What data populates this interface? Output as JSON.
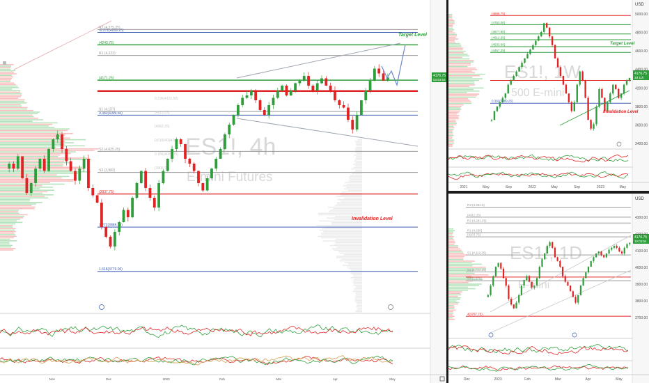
{
  "main": {
    "watermark_symbol": "ES1!, 4h",
    "watermark_name": "E-mini Futures",
    "target_label": "Target Level",
    "invalidation_label": "Invalidation Level",
    "price_badge": "4176.75",
    "price_badge_time": "03:53:53",
    "ghost_labels": [
      "0.236(4131.50)",
      "(4121.25)",
      "(4062.25)",
      "0.618(4034.50)",
      "0.786(4007.75)",
      "(3908.75)"
    ],
    "top_axis_labels": [
      "Nov",
      "Dec",
      "2023",
      "Feb",
      "Mar",
      "Apr",
      "May"
    ],
    "levels": [
      {
        "label": "-0.272(4269.25)",
        "price": 4269.25,
        "color": "#3b5bb5",
        "width": 1
      },
      {
        "label": "R2 (4,275.25)",
        "price": 4275.25,
        "color": "#9a9a9a",
        "width": 1
      },
      {
        "label": "(4243.75)",
        "price": 4243.75,
        "color": "#2e9e3a",
        "width": 1.4
      },
      {
        "label": "R1 (4,222)",
        "price": 4222,
        "color": "#9a9a9a",
        "width": 1
      },
      {
        "label": "(4171.25)",
        "price": 4171.25,
        "color": "#2e9e3a",
        "width": 1.4
      },
      {
        "label": "",
        "price": 4149,
        "color": "#e02424",
        "width": 2.5
      },
      {
        "label": "0.382(4099.50)",
        "price": 4099.5,
        "color": "#3b5bb5",
        "width": 1
      },
      {
        "label": "S1 (4,107)",
        "price": 4107,
        "color": "#9a9a9a",
        "width": 1
      },
      {
        "label": "S2 (4,025.25)",
        "price": 4025.25,
        "color": "#9a9a9a",
        "width": 1
      },
      {
        "label": "S3 (3,982)",
        "price": 3982,
        "color": "#9a9a9a",
        "width": 1
      },
      {
        "label": "(3937.75)",
        "price": 3937.75,
        "color": "#e02424",
        "width": 1.4
      },
      {
        "label": "1.272(3869.75)",
        "price": 3869.75,
        "color": "#3b5bb5",
        "width": 1
      },
      {
        "label": "1.618(3779.00)",
        "price": 3779,
        "color": "#3b5bb5",
        "width": 1
      }
    ]
  },
  "weekly": {
    "watermark_symbol": "ES1!, 1W",
    "watermark_name": "500 E-mini",
    "currency": "USD",
    "target_label": "Target Level",
    "invalidation_label": "Invalidation Level",
    "price_badge": "4176.75",
    "price_badge_time": "3d 11h",
    "levels": [
      {
        "label": "(4886.75)",
        "price": 4886.75,
        "color": "#e02424"
      },
      {
        "label": "(4783.00)",
        "price": 4783,
        "color": "#2e9e3a"
      },
      {
        "label": "(4677.50)",
        "price": 4677.5,
        "color": "#2e9e3a"
      },
      {
        "label": "(4612.25)",
        "price": 4612.25,
        "color": "#2e9e3a"
      },
      {
        "label": "(4533.00)",
        "price": 4533,
        "color": "#2e9e3a"
      },
      {
        "label": "(4467.25)",
        "price": 4467.25,
        "color": "#2e9e3a"
      },
      {
        "label": "0.382(3889.25)",
        "price": 3889.25,
        "color": "#3b5bb5"
      },
      {
        "label": "",
        "price": 4149,
        "color": "#e02424"
      }
    ],
    "y_ticks": [
      "5000.00",
      "4800.00",
      "4600.00",
      "4400.00",
      "4200.00",
      "3800.00",
      "3600.00",
      "3400.00"
    ],
    "x_ticks": [
      "2021",
      "May",
      "Sep",
      "2022",
      "May",
      "Sep",
      "2023",
      "May"
    ],
    "osc_ticks": [
      "0.00"
    ]
  },
  "daily": {
    "watermark_symbol": "ES1!, 1D",
    "watermark_name": "E-mini",
    "currency": "USD",
    "price_badge": "4176.75",
    "price_badge_time": "10:03:54",
    "levels": [
      {
        "label": "R3 (4,364.5)",
        "price": 4364.5,
        "color": "#9a9a9a"
      },
      {
        "label": "(4312.25)",
        "price": 4312.25,
        "color": "#9a9a9a"
      },
      {
        "label": "R2 (4,281.25)",
        "price": 4281.25,
        "color": "#9a9a9a"
      },
      {
        "label": "R1 (4,230)",
        "price": 4230,
        "color": "#9a9a9a"
      },
      {
        "label": "(4207.75)",
        "price": 4207.75,
        "color": "#9a9a9a"
      },
      {
        "label": "S1 (4,112.25)",
        "price": 4112.25,
        "color": "#9a9a9a"
      },
      {
        "label": "S2 (4,022.25)",
        "price": 4022.25,
        "color": "#9a9a9a"
      },
      {
        "label": "S3 (3,976)",
        "price": 3976,
        "color": "#9a9a9a"
      },
      {
        "label": "4(3787.75)",
        "price": 3787.75,
        "color": "#e02424"
      },
      {
        "label": "",
        "price": 3995,
        "color": "#e02424"
      }
    ],
    "y_ticks": [
      "4300.00",
      "4200.00",
      "4100.00",
      "4000.00",
      "3900.00",
      "3800.00",
      "3700.00"
    ],
    "x_ticks": [
      "Dec",
      "2023",
      "Feb",
      "Mar",
      "Apr",
      "May"
    ],
    "osc_ticks": [
      "0.00"
    ]
  },
  "chart_data": [
    {
      "type": "candlestick",
      "title": "ES1!, 4h",
      "subtitle": "E-mini Futures",
      "ylim": [
        3700,
        4300
      ],
      "series": [
        {
          "name": "ES1!",
          "values": [
            4000,
            3990,
            4015,
            3970,
            3940,
            3960,
            3990,
            4010,
            3985,
            4030,
            4050,
            4060,
            4030,
            4005,
            3985,
            3965,
            3990,
            4010,
            3950,
            3935,
            3920,
            3870,
            3850,
            3830,
            3860,
            3880,
            3905,
            3890,
            3930,
            3960,
            3985,
            3950,
            3930,
            3910,
            3960,
            3985,
            4010,
            4030,
            4050,
            4040,
            4010,
            4000,
            3985,
            3960,
            3945,
            3970,
            3990,
            4010,
            4030,
            4060,
            4080,
            4100,
            4120,
            4135,
            4140,
            4150,
            4130,
            4110,
            4100,
            4120,
            4135,
            4150,
            4160,
            4140,
            4150,
            4165,
            4170,
            4180,
            4160,
            4150,
            4165,
            4175,
            4160,
            4150,
            4130,
            4120,
            4115,
            4090,
            4070,
            4100,
            4130,
            4150,
            4170,
            4195,
            4185,
            4170,
            4176.75
          ]
        }
      ]
    },
    {
      "type": "candlestick",
      "title": "ES1!, 1W",
      "ylim": [
        3400,
        5000
      ],
      "series": [
        {
          "name": "ES1!",
          "values": [
            3700,
            3800,
            3850,
            3900,
            3950,
            4000,
            4100,
            4150,
            4200,
            4250,
            4300,
            4350,
            4400,
            4450,
            4500,
            4550,
            4600,
            4650,
            4700,
            4800,
            4750,
            4650,
            4550,
            4400,
            4300,
            4200,
            4100,
            4000,
            3900,
            3800,
            3900,
            4100,
            4250,
            4150,
            3950,
            3700,
            3600,
            3650,
            3850,
            4050,
            3950,
            3800,
            3900,
            4000,
            4100,
            4050,
            3950,
            4000,
            4100,
            4150,
            4176.75
          ]
        }
      ]
    },
    {
      "type": "candlestick",
      "title": "ES1!, 1D",
      "ylim": [
        3700,
        4400
      ],
      "series": [
        {
          "name": "ES1!",
          "values": [
            3900,
            3950,
            4000,
            4050,
            4070,
            4040,
            3990,
            3950,
            3880,
            3850,
            3830,
            3860,
            3900,
            3950,
            3980,
            4000,
            3970,
            3940,
            3950,
            3990,
            4050,
            4090,
            4120,
            4160,
            4180,
            4150,
            4100,
            4080,
            4050,
            4000,
            3970,
            3950,
            3920,
            3890,
            3860,
            3900,
            3950,
            3990,
            4020,
            4050,
            4080,
            4100,
            4120,
            4130,
            4110,
            4100,
            4120,
            4140,
            4150,
            4160,
            4150,
            4130,
            4120,
            4150,
            4170,
            4176.75
          ]
        }
      ]
    }
  ]
}
